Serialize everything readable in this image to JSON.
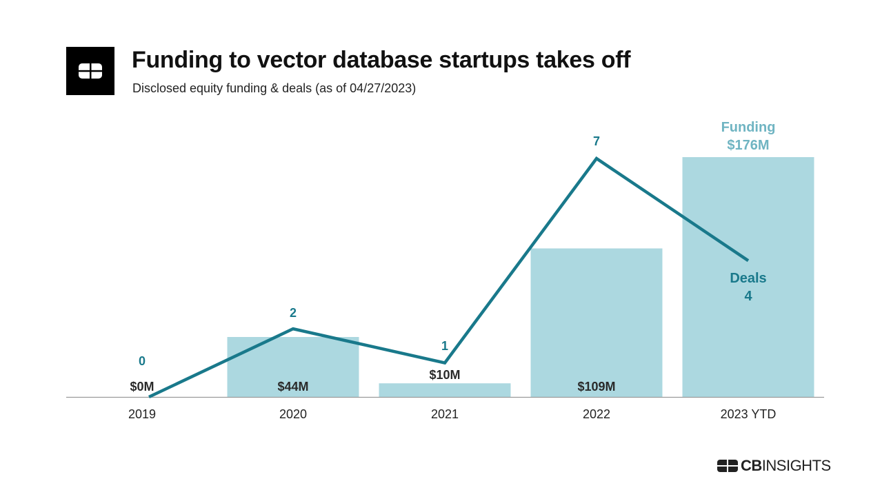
{
  "header": {
    "title": "Funding to vector database startups takes off",
    "subtitle": "Disclosed equity funding & deals (as of 04/27/2023)"
  },
  "brand": {
    "strong": "CB",
    "light": "INSIGHTS",
    "logo_icon": "cb-insights-logo-icon"
  },
  "colors": {
    "bar": "#acd8e0",
    "line": "#19798b",
    "funding_label": "#6fb4c2",
    "axis": "#9a9a9a"
  },
  "chart_data": {
    "type": "bar+line",
    "title": "Funding to vector database startups takes off",
    "categories": [
      "2019",
      "2020",
      "2021",
      "2022",
      "2023 YTD"
    ],
    "series": [
      {
        "name": "Funding",
        "kind": "bar",
        "unit": "$M",
        "values": [
          0,
          44,
          10,
          109,
          176
        ],
        "labels": [
          "$0M",
          "$44M",
          "$10M",
          "$109M",
          "$176M"
        ]
      },
      {
        "name": "Deals",
        "kind": "line",
        "values": [
          0,
          2,
          1,
          7,
          4
        ],
        "labels": [
          "0",
          "2",
          "1",
          "7",
          "4"
        ]
      }
    ],
    "funding_legend": "Funding",
    "deals_legend": "Deals",
    "funding_ylim": [
      0,
      176
    ],
    "deals_ylim": [
      0,
      7
    ],
    "grid": false
  }
}
